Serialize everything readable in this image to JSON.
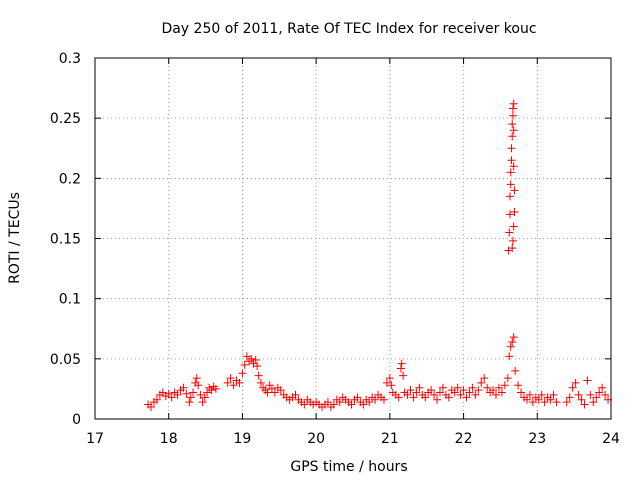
{
  "colors": {
    "marker": "#ff0000",
    "axis": "#000000",
    "grid": "#a0a0a0",
    "background": "#ffffff"
  },
  "chart_data": {
    "type": "scatter",
    "title": "Day 250 of 2011, Rate Of TEC Index for receiver kouc",
    "xlabel": "GPS time / hours",
    "ylabel": "ROTI / TECUs",
    "xlim": [
      17,
      24
    ],
    "ylim": [
      0,
      0.3
    ],
    "xticks": [
      17,
      18,
      19,
      20,
      21,
      22,
      23,
      24
    ],
    "xtick_labels": [
      "17",
      "18",
      "19",
      "20",
      "21",
      "22",
      "23",
      "24"
    ],
    "yticks": [
      0,
      0.05,
      0.1,
      0.15,
      0.2,
      0.25,
      0.3
    ],
    "ytick_labels": [
      "0",
      "0.05",
      "0.1",
      "0.15",
      "0.2",
      "0.25",
      "0.3"
    ],
    "grid": true,
    "marker": "+",
    "series": [
      {
        "name": "ROTI",
        "points": [
          [
            17.72,
            0.012
          ],
          [
            17.76,
            0.01
          ],
          [
            17.8,
            0.014
          ],
          [
            17.84,
            0.016
          ],
          [
            17.88,
            0.02
          ],
          [
            17.92,
            0.022
          ],
          [
            17.96,
            0.019
          ],
          [
            18.0,
            0.021
          ],
          [
            18.04,
            0.018
          ],
          [
            18.08,
            0.022
          ],
          [
            18.12,
            0.02
          ],
          [
            18.16,
            0.024
          ],
          [
            18.2,
            0.026
          ],
          [
            18.24,
            0.021
          ],
          [
            18.28,
            0.014
          ],
          [
            18.3,
            0.018
          ],
          [
            18.33,
            0.022
          ],
          [
            18.36,
            0.03
          ],
          [
            18.38,
            0.034
          ],
          [
            18.4,
            0.028
          ],
          [
            18.43,
            0.02
          ],
          [
            18.46,
            0.014
          ],
          [
            18.49,
            0.018
          ],
          [
            18.52,
            0.022
          ],
          [
            18.55,
            0.026
          ],
          [
            18.58,
            0.024
          ],
          [
            18.61,
            0.027
          ],
          [
            18.64,
            0.025
          ],
          [
            18.8,
            0.03
          ],
          [
            18.84,
            0.034
          ],
          [
            18.88,
            0.028
          ],
          [
            18.92,
            0.032
          ],
          [
            18.96,
            0.03
          ],
          [
            19.0,
            0.038
          ],
          [
            19.03,
            0.045
          ],
          [
            19.06,
            0.052
          ],
          [
            19.09,
            0.048
          ],
          [
            19.12,
            0.05
          ],
          [
            19.15,
            0.046
          ],
          [
            19.18,
            0.049
          ],
          [
            19.2,
            0.044
          ],
          [
            19.22,
            0.036
          ],
          [
            19.25,
            0.03
          ],
          [
            19.28,
            0.026
          ],
          [
            19.31,
            0.024
          ],
          [
            19.34,
            0.022
          ],
          [
            19.37,
            0.028
          ],
          [
            19.4,
            0.025
          ],
          [
            19.44,
            0.022
          ],
          [
            19.48,
            0.026
          ],
          [
            19.52,
            0.024
          ],
          [
            19.56,
            0.02
          ],
          [
            19.6,
            0.018
          ],
          [
            19.64,
            0.016
          ],
          [
            19.68,
            0.018
          ],
          [
            19.72,
            0.02
          ],
          [
            19.76,
            0.016
          ],
          [
            19.8,
            0.014
          ],
          [
            19.84,
            0.012
          ],
          [
            19.88,
            0.016
          ],
          [
            19.92,
            0.014
          ],
          [
            19.96,
            0.012
          ],
          [
            20.0,
            0.014
          ],
          [
            20.04,
            0.012
          ],
          [
            20.08,
            0.01
          ],
          [
            20.12,
            0.012
          ],
          [
            20.16,
            0.014
          ],
          [
            20.2,
            0.01
          ],
          [
            20.24,
            0.012
          ],
          [
            20.28,
            0.016
          ],
          [
            20.32,
            0.014
          ],
          [
            20.36,
            0.018
          ],
          [
            20.4,
            0.016
          ],
          [
            20.44,
            0.014
          ],
          [
            20.48,
            0.012
          ],
          [
            20.52,
            0.016
          ],
          [
            20.56,
            0.018
          ],
          [
            20.6,
            0.014
          ],
          [
            20.64,
            0.012
          ],
          [
            20.68,
            0.016
          ],
          [
            20.72,
            0.014
          ],
          [
            20.76,
            0.018
          ],
          [
            20.8,
            0.016
          ],
          [
            20.84,
            0.02
          ],
          [
            20.88,
            0.018
          ],
          [
            20.92,
            0.016
          ],
          [
            20.96,
            0.03
          ],
          [
            21.0,
            0.034
          ],
          [
            21.02,
            0.028
          ],
          [
            21.04,
            0.022
          ],
          [
            21.08,
            0.02
          ],
          [
            21.12,
            0.018
          ],
          [
            21.15,
            0.042
          ],
          [
            21.16,
            0.046
          ],
          [
            21.18,
            0.036
          ],
          [
            21.2,
            0.022
          ],
          [
            21.24,
            0.02
          ],
          [
            21.28,
            0.024
          ],
          [
            21.32,
            0.018
          ],
          [
            21.36,
            0.022
          ],
          [
            21.4,
            0.026
          ],
          [
            21.44,
            0.02
          ],
          [
            21.48,
            0.018
          ],
          [
            21.52,
            0.022
          ],
          [
            21.56,
            0.024
          ],
          [
            21.6,
            0.02
          ],
          [
            21.64,
            0.016
          ],
          [
            21.68,
            0.022
          ],
          [
            21.72,
            0.026
          ],
          [
            21.76,
            0.02
          ],
          [
            21.8,
            0.018
          ],
          [
            21.84,
            0.024
          ],
          [
            21.88,
            0.022
          ],
          [
            21.92,
            0.026
          ],
          [
            21.96,
            0.02
          ],
          [
            22.0,
            0.024
          ],
          [
            22.04,
            0.018
          ],
          [
            22.08,
            0.022
          ],
          [
            22.12,
            0.026
          ],
          [
            22.16,
            0.02
          ],
          [
            22.2,
            0.024
          ],
          [
            22.24,
            0.03
          ],
          [
            22.28,
            0.034
          ],
          [
            22.32,
            0.026
          ],
          [
            22.36,
            0.022
          ],
          [
            22.4,
            0.024
          ],
          [
            22.44,
            0.02
          ],
          [
            22.48,
            0.026
          ],
          [
            22.52,
            0.022
          ],
          [
            22.56,
            0.028
          ],
          [
            22.6,
            0.034
          ],
          [
            22.62,
            0.052
          ],
          [
            22.64,
            0.06
          ],
          [
            22.66,
            0.064
          ],
          [
            22.68,
            0.068
          ],
          [
            22.61,
            0.14
          ],
          [
            22.62,
            0.155
          ],
          [
            22.63,
            0.17
          ],
          [
            22.63,
            0.185
          ],
          [
            22.64,
            0.195
          ],
          [
            22.64,
            0.205
          ],
          [
            22.65,
            0.215
          ],
          [
            22.65,
            0.225
          ],
          [
            22.66,
            0.235
          ],
          [
            22.66,
            0.245
          ],
          [
            22.67,
            0.252
          ],
          [
            22.67,
            0.258
          ],
          [
            22.68,
            0.262
          ],
          [
            22.68,
            0.24
          ],
          [
            22.68,
            0.21
          ],
          [
            22.69,
            0.19
          ],
          [
            22.69,
            0.172
          ],
          [
            22.68,
            0.16
          ],
          [
            22.67,
            0.148
          ],
          [
            22.66,
            0.142
          ],
          [
            22.7,
            0.04
          ],
          [
            22.74,
            0.028
          ],
          [
            22.78,
            0.022
          ],
          [
            22.82,
            0.018
          ],
          [
            22.86,
            0.016
          ],
          [
            22.9,
            0.02
          ],
          [
            22.94,
            0.014
          ],
          [
            22.98,
            0.018
          ],
          [
            23.02,
            0.016
          ],
          [
            23.06,
            0.02
          ],
          [
            23.1,
            0.014
          ],
          [
            23.14,
            0.018
          ],
          [
            23.18,
            0.016
          ],
          [
            23.22,
            0.02
          ],
          [
            23.26,
            0.014
          ],
          [
            23.4,
            0.014
          ],
          [
            23.44,
            0.018
          ],
          [
            23.48,
            0.026
          ],
          [
            23.52,
            0.03
          ],
          [
            23.56,
            0.02
          ],
          [
            23.6,
            0.016
          ],
          [
            23.64,
            0.012
          ],
          [
            23.68,
            0.032
          ],
          [
            23.72,
            0.02
          ],
          [
            23.76,
            0.014
          ],
          [
            23.8,
            0.018
          ],
          [
            23.84,
            0.022
          ],
          [
            23.88,
            0.026
          ],
          [
            23.92,
            0.02
          ],
          [
            23.96,
            0.016
          ]
        ]
      }
    ]
  }
}
